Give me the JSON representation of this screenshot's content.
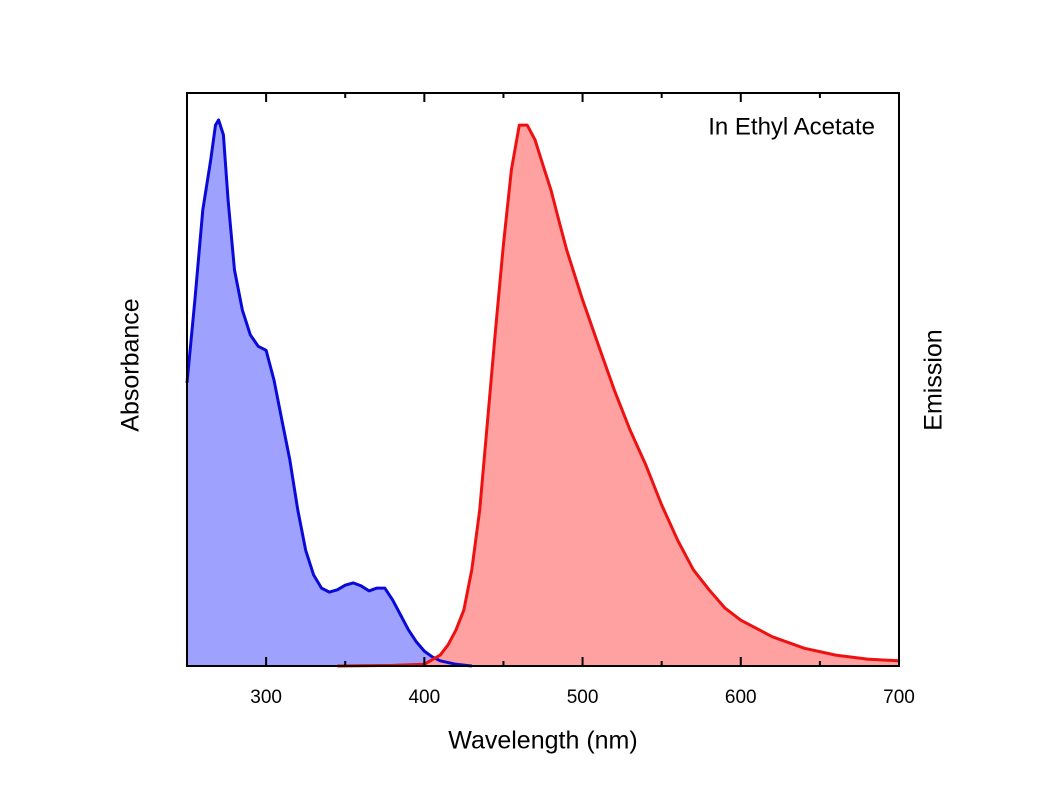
{
  "chart_data": {
    "type": "area",
    "annotation": "In Ethyl Acetate",
    "xlabel": "Wavelength (nm)",
    "ylabel": "Absorbance",
    "y2label": "Emission",
    "xlim": [
      250,
      700
    ],
    "xticks": [
      300,
      400,
      500,
      600,
      700
    ],
    "xminorticks": [
      250,
      350,
      450,
      550,
      650
    ],
    "ylim": [
      0,
      1
    ],
    "y2lim": [
      0,
      1
    ],
    "series": [
      {
        "name": "Absorbance",
        "color": "#0a0ad8",
        "fill": "#9a9cff",
        "x": [
          250,
          255,
          260,
          265,
          268,
          270,
          273,
          276,
          280,
          285,
          290,
          295,
          300,
          305,
          310,
          315,
          320,
          325,
          330,
          335,
          340,
          345,
          350,
          355,
          360,
          365,
          370,
          375,
          380,
          385,
          390,
          395,
          400,
          405,
          410,
          420,
          430
        ],
        "values": [
          0.494,
          0.639,
          0.796,
          0.883,
          0.944,
          0.953,
          0.927,
          0.813,
          0.691,
          0.621,
          0.578,
          0.558,
          0.551,
          0.499,
          0.429,
          0.36,
          0.272,
          0.202,
          0.159,
          0.136,
          0.129,
          0.133,
          0.141,
          0.145,
          0.14,
          0.131,
          0.136,
          0.136,
          0.115,
          0.089,
          0.063,
          0.042,
          0.026,
          0.016,
          0.009,
          0.003,
          0
        ]
      },
      {
        "name": "Emission",
        "color": "#ee1111",
        "fill": "#ff9c9c",
        "axis": "y2",
        "x": [
          345,
          380,
          400,
          410,
          415,
          420,
          425,
          430,
          435,
          440,
          445,
          450,
          455,
          460,
          465,
          470,
          475,
          480,
          485,
          490,
          500,
          510,
          520,
          530,
          540,
          550,
          560,
          570,
          580,
          590,
          600,
          620,
          640,
          660,
          680,
          700
        ],
        "values": [
          0,
          0.001,
          0.003,
          0.019,
          0.037,
          0.063,
          0.098,
          0.168,
          0.272,
          0.429,
          0.586,
          0.735,
          0.866,
          0.944,
          0.944,
          0.918,
          0.874,
          0.831,
          0.778,
          0.726,
          0.639,
          0.56,
          0.482,
          0.412,
          0.351,
          0.281,
          0.22,
          0.168,
          0.133,
          0.101,
          0.08,
          0.051,
          0.031,
          0.019,
          0.012,
          0.009
        ]
      }
    ]
  }
}
